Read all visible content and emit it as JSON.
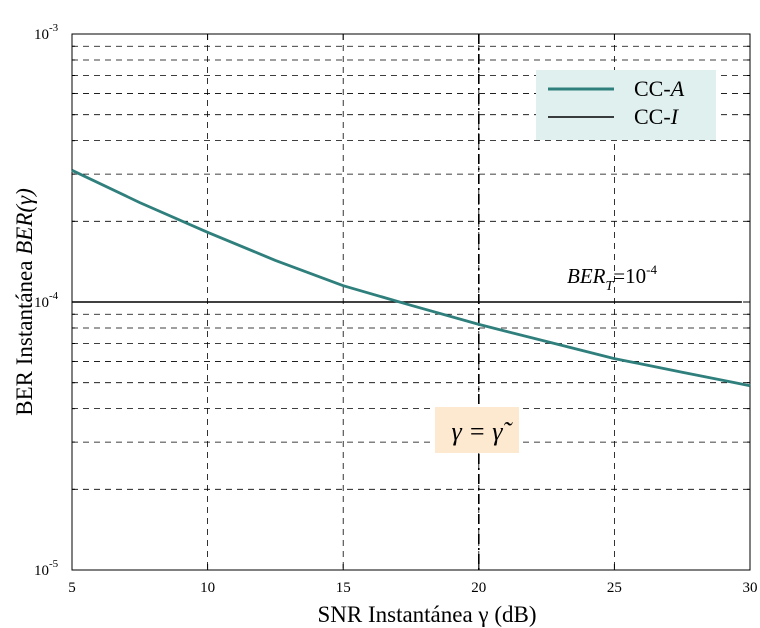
{
  "chart_data": {
    "type": "line",
    "title": "",
    "xlabel": "SNR Instantánea γ (dB)",
    "ylabel_prefix": "BER Instantánea ",
    "ylabel_math": "BER(γ)",
    "x_scale": "linear",
    "y_scale": "log",
    "xlim": [
      5,
      30
    ],
    "ylim": [
      1e-05,
      0.001
    ],
    "x_ticks": [
      5,
      10,
      15,
      20,
      25,
      30
    ],
    "y_ticks": [
      {
        "value": 1e-05,
        "base": "10",
        "exp": "-5"
      },
      {
        "value": 0.0001,
        "base": "10",
        "exp": "-4"
      },
      {
        "value": 0.001,
        "base": "10",
        "exp": "-3"
      }
    ],
    "grid": true,
    "legend_position": "top-right",
    "series": [
      {
        "name": "CC-A",
        "name_prefix": "CC-",
        "name_italic": "A",
        "color": "#2f7f7d",
        "x": [
          5,
          7.5,
          10,
          12.5,
          15,
          17.5,
          20,
          22.5,
          25,
          27.5,
          30
        ],
        "y": [
          0.00031,
          0.000235,
          0.000182,
          0.000143,
          0.000115,
          9.72e-05,
          8.25e-05,
          7.12e-05,
          6.15e-05,
          5.47e-05,
          4.87e-05
        ]
      },
      {
        "name": "CC-I",
        "name_prefix": "CC-",
        "name_italic": "I",
        "color": "#000000",
        "x": [
          5,
          29.7
        ],
        "y": [
          0.0001,
          0.0001
        ]
      }
    ],
    "vertical_line": {
      "x": 20,
      "style": "dash-dot"
    },
    "annotations": {
      "target": {
        "main": "BER",
        "sub": "T",
        "eq": "=10",
        "exp": "-4"
      },
      "gamma_eq": "γ = γ̃",
      "gamma_box_color": "#fde8d0"
    },
    "legend_box_color": "#dff0ef"
  }
}
